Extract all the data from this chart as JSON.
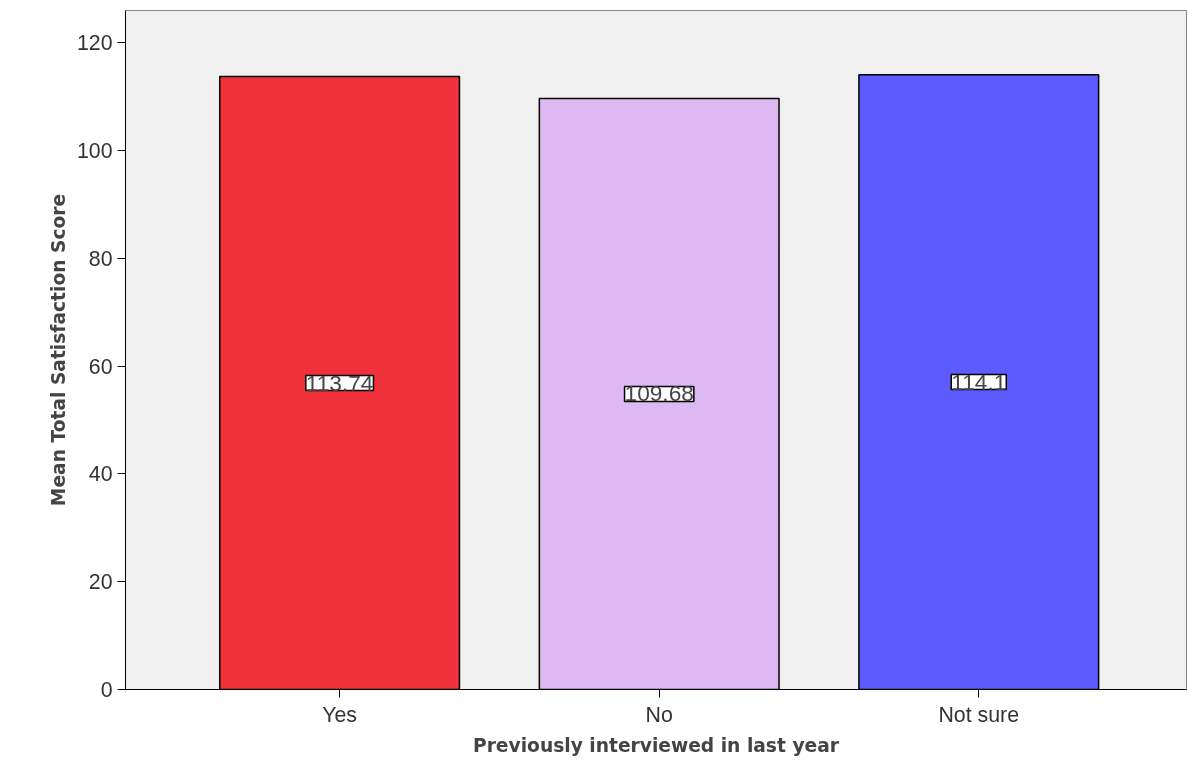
{
  "chart_data": {
    "type": "bar",
    "xlabel": "Previously interviewed in last year",
    "ylabel": "Mean Total Satisfaction Score",
    "categories": [
      "Yes",
      "No",
      "Not sure"
    ],
    "values": [
      113.74,
      109.68,
      114.1
    ],
    "colors": [
      "#f0303a",
      "#ddb8f2",
      "#5b5bff"
    ],
    "ylim": [
      0,
      126
    ],
    "yticks": [
      0,
      20,
      40,
      60,
      80,
      100,
      120
    ],
    "grid": false,
    "data_labels": true
  }
}
